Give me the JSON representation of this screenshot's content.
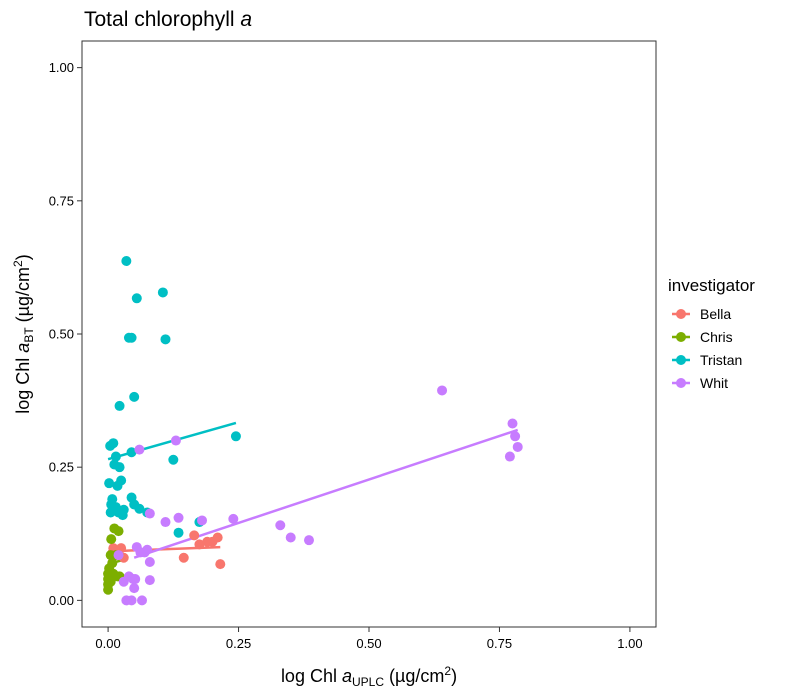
{
  "chart_data": {
    "type": "scatter",
    "title": "Total chlorophyll ",
    "title_italic": "a",
    "xlabel": {
      "prefix": "log Chl ",
      "italic": "a",
      "subscript": "UPLC",
      "unit_open": " (µg/cm",
      "unit_sup": "2",
      "unit_close": ")"
    },
    "ylabel": {
      "prefix": "log Chl ",
      "italic": "a",
      "subscript": "BT",
      "unit_open": " (µg/cm",
      "unit_sup": "2",
      "unit_close": ")"
    },
    "xlim": [
      -0.05,
      1.05
    ],
    "ylim": [
      -0.05,
      1.05
    ],
    "xticks": [
      0.0,
      0.25,
      0.5,
      0.75,
      1.0
    ],
    "yticks": [
      0.0,
      0.25,
      0.5,
      0.75,
      1.0
    ],
    "xtick_labels": [
      "0.00",
      "0.25",
      "0.50",
      "0.75",
      "1.00"
    ],
    "ytick_labels": [
      "0.00",
      "0.25",
      "0.50",
      "0.75",
      "1.00"
    ],
    "grid": false,
    "legend": {
      "title": "investigator",
      "position": "right"
    },
    "series": [
      {
        "name": "Bella",
        "color": "#F8766D",
        "points": [
          [
            0.01,
            0.098
          ],
          [
            0.025,
            0.098
          ],
          [
            0.03,
            0.08
          ],
          [
            0.145,
            0.08
          ],
          [
            0.165,
            0.122
          ],
          [
            0.175,
            0.105
          ],
          [
            0.19,
            0.11
          ],
          [
            0.2,
            0.11
          ],
          [
            0.21,
            0.118
          ],
          [
            0.215,
            0.068
          ]
        ],
        "fit": [
          [
            0.0,
            0.092
          ],
          [
            0.215,
            0.1
          ]
        ]
      },
      {
        "name": "Chris",
        "color": "#7CAE00",
        "points": [
          [
            0.0,
            0.02
          ],
          [
            0.0,
            0.03
          ],
          [
            0.0,
            0.04
          ],
          [
            0.0,
            0.05
          ],
          [
            0.002,
            0.06
          ],
          [
            0.004,
            0.045
          ],
          [
            0.005,
            0.085
          ],
          [
            0.006,
            0.115
          ],
          [
            0.008,
            0.07
          ],
          [
            0.01,
            0.05
          ],
          [
            0.012,
            0.135
          ],
          [
            0.015,
            0.085
          ],
          [
            0.018,
            0.045
          ],
          [
            0.02,
            0.13
          ],
          [
            0.022,
            0.045
          ],
          [
            0.005,
            0.035
          ],
          [
            0.003,
            0.055
          ]
        ],
        "fit": [
          [
            0.0,
            0.068
          ],
          [
            0.025,
            0.075
          ]
        ]
      },
      {
        "name": "Tristan",
        "color": "#00BFC4",
        "points": [
          [
            0.002,
            0.22
          ],
          [
            0.004,
            0.29
          ],
          [
            0.005,
            0.165
          ],
          [
            0.006,
            0.18
          ],
          [
            0.008,
            0.19
          ],
          [
            0.01,
            0.295
          ],
          [
            0.012,
            0.255
          ],
          [
            0.015,
            0.27
          ],
          [
            0.015,
            0.175
          ],
          [
            0.018,
            0.215
          ],
          [
            0.02,
            0.165
          ],
          [
            0.022,
            0.25
          ],
          [
            0.022,
            0.365
          ],
          [
            0.025,
            0.225
          ],
          [
            0.028,
            0.16
          ],
          [
            0.03,
            0.17
          ],
          [
            0.035,
            0.637
          ],
          [
            0.04,
            0.493
          ],
          [
            0.045,
            0.493
          ],
          [
            0.045,
            0.278
          ],
          [
            0.045,
            0.193
          ],
          [
            0.05,
            0.18
          ],
          [
            0.05,
            0.382
          ],
          [
            0.055,
            0.567
          ],
          [
            0.06,
            0.172
          ],
          [
            0.075,
            0.165
          ],
          [
            0.105,
            0.578
          ],
          [
            0.11,
            0.49
          ],
          [
            0.125,
            0.264
          ],
          [
            0.135,
            0.127
          ],
          [
            0.175,
            0.147
          ],
          [
            0.245,
            0.308
          ]
        ],
        "fit": [
          [
            0.0,
            0.265
          ],
          [
            0.245,
            0.333
          ]
        ]
      },
      {
        "name": "Whit",
        "color": "#C77CFF",
        "points": [
          [
            0.02,
            0.085
          ],
          [
            0.03,
            0.035
          ],
          [
            0.035,
            0.0
          ],
          [
            0.04,
            0.045
          ],
          [
            0.045,
            0.0
          ],
          [
            0.048,
            0.04
          ],
          [
            0.05,
            0.023
          ],
          [
            0.052,
            0.04
          ],
          [
            0.055,
            0.1
          ],
          [
            0.06,
            0.283
          ],
          [
            0.062,
            0.09
          ],
          [
            0.065,
            0.0
          ],
          [
            0.07,
            0.09
          ],
          [
            0.075,
            0.095
          ],
          [
            0.08,
            0.163
          ],
          [
            0.08,
            0.072
          ],
          [
            0.08,
            0.038
          ],
          [
            0.11,
            0.147
          ],
          [
            0.13,
            0.3
          ],
          [
            0.135,
            0.155
          ],
          [
            0.18,
            0.15
          ],
          [
            0.24,
            0.153
          ],
          [
            0.33,
            0.141
          ],
          [
            0.35,
            0.118
          ],
          [
            0.385,
            0.113
          ],
          [
            0.64,
            0.394
          ],
          [
            0.77,
            0.27
          ],
          [
            0.775,
            0.332
          ],
          [
            0.78,
            0.308
          ],
          [
            0.785,
            0.288
          ]
        ],
        "fit": [
          [
            0.05,
            0.08
          ],
          [
            0.785,
            0.32
          ]
        ]
      }
    ]
  }
}
